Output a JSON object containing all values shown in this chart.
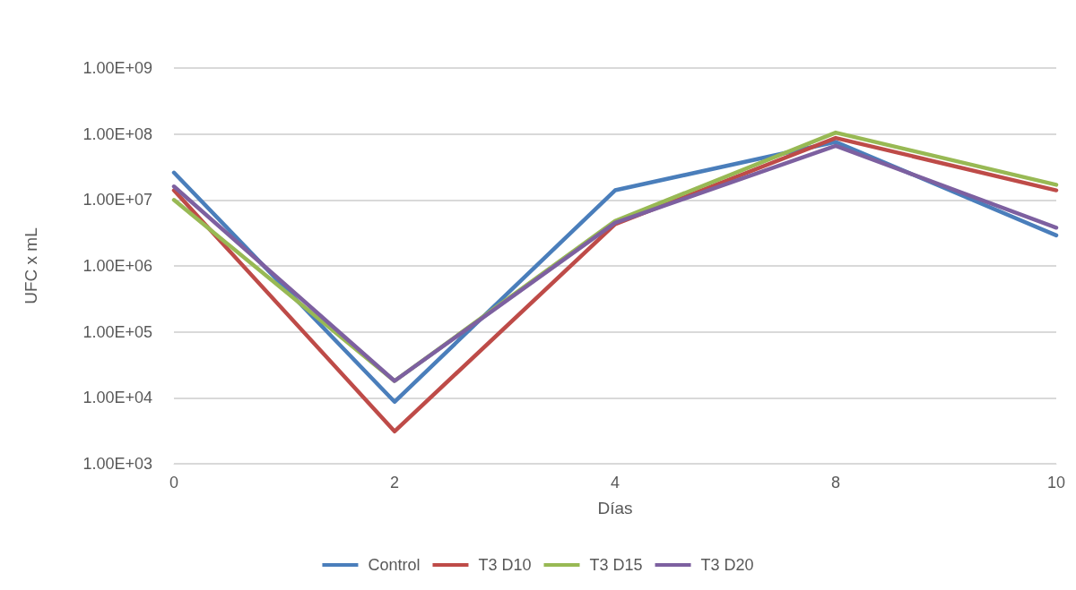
{
  "chart_data": {
    "type": "line",
    "xlabel": "Días",
    "ylabel": "UFC x mL",
    "categories": [
      "0",
      "2",
      "4",
      "8",
      "10"
    ],
    "series": [
      {
        "name": "Control",
        "color": "#4a7ebb",
        "values": [
          26000000,
          8700,
          14000000,
          76000000,
          2900000
        ]
      },
      {
        "name": "T3 D10",
        "color": "#be4b48",
        "values": [
          14000000,
          3100,
          4300000,
          87000000,
          14000000
        ]
      },
      {
        "name": "T3 D15",
        "color": "#98b954",
        "values": [
          10000000,
          18000,
          4800000,
          105000000,
          17000000
        ]
      },
      {
        "name": "T3 D20",
        "color": "#7d60a0",
        "values": [
          16000000,
          18000,
          4500000,
          66000000,
          3800000
        ]
      }
    ],
    "log": "y",
    "ylim": [
      1000,
      1000000000
    ],
    "yticks": [
      {
        "value": 1000,
        "label": "1.00E+03"
      },
      {
        "value": 10000,
        "label": "1.00E+04"
      },
      {
        "value": 100000,
        "label": "1.00E+05"
      },
      {
        "value": 1000000,
        "label": "1.00E+06"
      },
      {
        "value": 10000000,
        "label": "1.00E+07"
      },
      {
        "value": 100000000,
        "label": "1.00E+08"
      },
      {
        "value": 1000000000,
        "label": "1.00E+09"
      }
    ],
    "grid": "y",
    "legend": "bottom",
    "marker": "none",
    "line_style": "solid"
  }
}
